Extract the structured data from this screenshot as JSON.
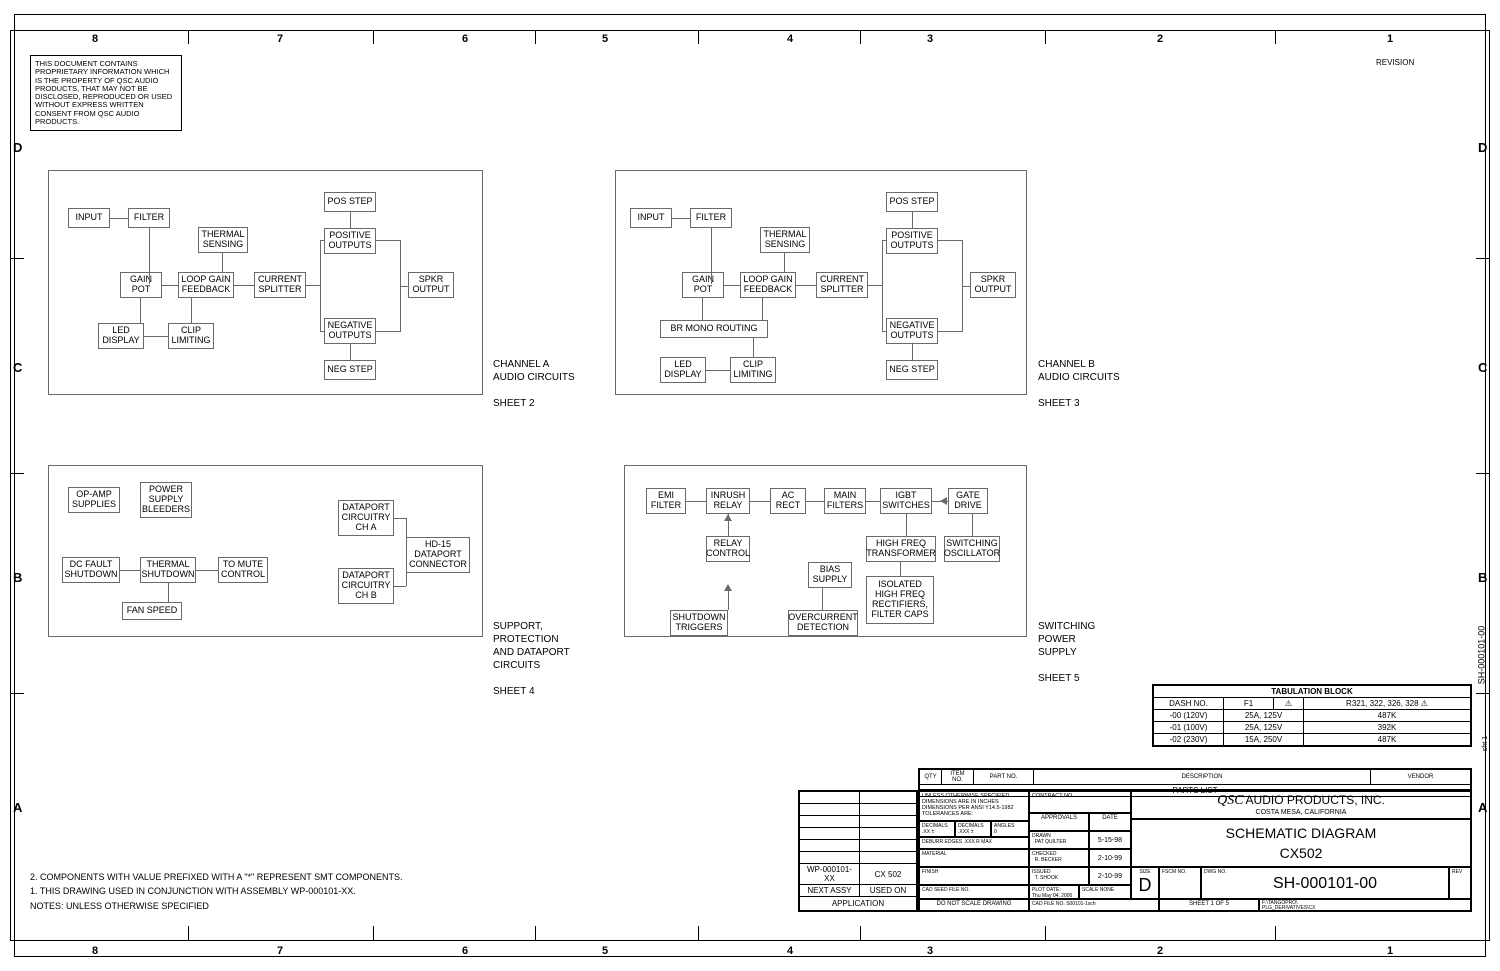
{
  "frame": {
    "cols": [
      "8",
      "7",
      "6",
      "5",
      "4",
      "3",
      "2",
      "1"
    ],
    "rows": [
      "D",
      "C",
      "B",
      "A"
    ],
    "revision_label": "REVISION"
  },
  "proprietary": "THIS DOCUMENT CONTAINS PROPRIETARY INFORMATION WHICH IS THE PROPERTY OF QSC AUDIO PRODUCTS, THAT MAY NOT BE DISCLOSED, REPRODUCED OR USED WITHOUT EXPRESS WRITTEN CONSENT FROM QSC AUDIO PRODUCTS.",
  "notes": {
    "n2": "2. COMPONENTS WITH VALUE PREFIXED WITH A \"*\" REPRESENT SMT COMPONENTS.",
    "n1": "1. THIS DRAWING USED IN CONJUNCTION WITH ASSEMBLY WP-000101-XX.",
    "title": "NOTES: UNLESS OTHERWISE SPECIFIED"
  },
  "diagrams": {
    "chA": {
      "label1": "CHANNEL A",
      "label2": "AUDIO CIRCUITS",
      "sheet": "SHEET 2",
      "blocks": {
        "input": "INPUT",
        "filter": "FILTER",
        "thermal": "THERMAL\nSENSING",
        "gain_pot": "GAIN\nPOT",
        "loop_gain": "LOOP GAIN\nFEEDBACK",
        "curr_split": "CURRENT\nSPLITTER",
        "pos_step": "POS STEP",
        "pos_out": "POSITIVE\nOUTPUTS",
        "neg_out": "NEGATIVE\nOUTPUTS",
        "neg_step": "NEG STEP",
        "spkr": "SPKR\nOUTPUT",
        "led": "LED\nDISPLAY",
        "clip": "CLIP\nLIMITING"
      }
    },
    "chB": {
      "label1": "CHANNEL B",
      "label2": "AUDIO CIRCUITS",
      "sheet": "SHEET 3",
      "blocks": {
        "input": "INPUT",
        "filter": "FILTER",
        "thermal": "THERMAL\nSENSING",
        "gain_pot": "GAIN\nPOT",
        "loop_gain": "LOOP GAIN\nFEEDBACK",
        "curr_split": "CURRENT\nSPLITTER",
        "pos_step": "POS STEP",
        "pos_out": "POSITIVE\nOUTPUTS",
        "neg_out": "NEGATIVE\nOUTPUTS",
        "neg_step": "NEG STEP",
        "spkr": "SPKR\nOUTPUT",
        "br_mono": "BR MONO ROUTING",
        "led": "LED\nDISPLAY",
        "clip": "CLIP\nLIMITING"
      }
    },
    "support": {
      "label1": "SUPPORT,",
      "label2": "PROTECTION",
      "label3": "AND DATAPORT",
      "label4": "CIRCUITS",
      "sheet": "SHEET 4",
      "blocks": {
        "opamp": "OP-AMP\nSUPPLIES",
        "bleeders": "POWER\nSUPPLY\nBLEEDERS",
        "dc_fault": "DC FAULT\nSHUTDOWN",
        "thermal_sd": "THERMAL\nSHUTDOWN",
        "to_mute": "TO MUTE\nCONTROL",
        "fan": "FAN SPEED",
        "dp_cha": "DATAPORT\nCIRCUITRY\nCH A",
        "dp_chb": "DATAPORT\nCIRCUITRY\nCH B",
        "hd15": "HD-15\nDATAPORT\nCONNECTOR"
      }
    },
    "smps": {
      "label1": "SWITCHING",
      "label2": "POWER",
      "label3": "SUPPLY",
      "sheet": "SHEET 5",
      "blocks": {
        "emi": "EMI\nFILTER",
        "inrush": "INRUSH\nRELAY",
        "ac_rect": "AC\nRECT",
        "main_filt": "MAIN\nFILTERS",
        "igbt": "IGBT\nSWITCHES",
        "gate": "GATE\nDRIVE",
        "relay_ctl": "RELAY\nCONTROL",
        "hf_trans": "HIGH FREQ\nTRANSFORMER",
        "sw_osc": "SWITCHING\nOSCILLATOR",
        "bias": "BIAS\nSUPPLY",
        "iso_rect": "ISOLATED\nHIGH FREQ\nRECTIFIERS,\nFILTER CAPS",
        "sd_trig": "SHUTDOWN\nTRIGGERS",
        "over_curr": "OVERCURRENT\nDETECTION"
      }
    }
  },
  "tabulation": {
    "title": "TABULATION BLOCK",
    "headers": [
      "DASH NO.",
      "F1",
      "⚠",
      "R321, 322, 326, 328 ⚠"
    ],
    "rows": [
      [
        "-00 (120V)",
        "25A, 125V",
        "487K"
      ],
      [
        "-01 (100V)",
        "25A, 125V",
        "392K"
      ],
      [
        "-02 (230V)",
        "15A, 250V",
        "487K"
      ]
    ]
  },
  "parts_list": {
    "headers": [
      "QTY",
      "ITEM NO.",
      "PART NO.",
      "DESCRIPTION",
      "VENDOR"
    ],
    "title": "PARTS LIST",
    "wp": "WP-000101-XX",
    "cx": "CX 502",
    "next_assy": "NEXT ASSY",
    "used_on": "USED ON",
    "application": "APPLICATION"
  },
  "title_block": {
    "unless": "UNLESS OTHERWISE SPECIFIED\nDIMENSIONS ARE IN INCHES\nDIMENSIONS PER ANSI Y14.5-1982\nTOLERANCES ARE:",
    "decimals1": "DECIMALS",
    "decimals2": "DECIMALS",
    "angles": "ANGLES",
    "xx": ".XX ±",
    "xxx": ".XXX ±",
    "zero": "0",
    "deburr": "DEBURR EDGES .XXX R MAX",
    "material": "MATERIAL",
    "finish": "FINISH",
    "cad_seed": "CAD SEED FILE NO.",
    "do_not_scale": "DO NOT SCALE DRAWING",
    "contract": "CONTRACT NO.",
    "approvals": "APPROVALS",
    "date": "DATE",
    "drawn": "DRAWN",
    "drawn_name": "PAT QUILTER",
    "drawn_date": "5-15-98",
    "checked": "CHECKED",
    "checked_name": "R. BECKER",
    "checked_date": "2-10-99",
    "issued": "ISSUED",
    "issued_name": "T. SHOOK",
    "issued_date": "2-10-99",
    "plot_date": "PLOT DATE:",
    "plot_date_val": "Thu May 04, 2000",
    "company_logo": "QSC",
    "company": "AUDIO PRODUCTS, INC.",
    "company_loc": "COSTA MESA, CALIFORNIA",
    "doc_title": "SCHEMATIC DIAGRAM",
    "model": "CX502",
    "size": "SIZE",
    "size_val": "D",
    "fscm": "FSCM NO.",
    "dwg_label": "DWG NO.",
    "dwg_no": "SH-000101-00",
    "rev": "REV",
    "scale": "SCALE",
    "scale_val": "NONE",
    "cad_file": "CAD FILE NO.",
    "cad_file_val": "S00101-1sch",
    "sheet": "SHEET 1 OF 5",
    "path": "F:\\TANGOPRO\\\nPLG_DERIVATIVES\\CX"
  },
  "side_label": "SH-000101-00"
}
